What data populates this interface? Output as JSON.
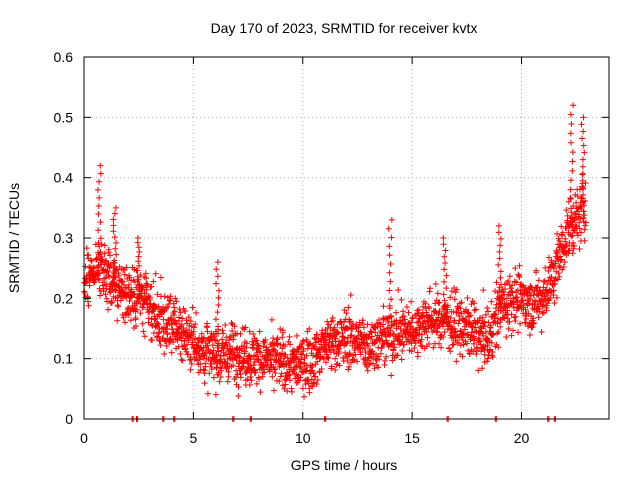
{
  "chart_data": {
    "type": "scatter",
    "title": "Day 170 of 2023, SRMTID for receiver kvtx",
    "xlabel": "GPS time / hours",
    "ylabel": "SRMTID / TECUs",
    "xlim": [
      0,
      24
    ],
    "ylim": [
      0,
      0.6
    ],
    "x_ticks": [
      0,
      5,
      10,
      15,
      20
    ],
    "x_tick_labels": [
      "0",
      "5",
      "10",
      "15",
      "20"
    ],
    "y_ticks": [
      0,
      0.1,
      0.2,
      0.3,
      0.4,
      0.5,
      0.6
    ],
    "y_tick_labels": [
      "0",
      "0.1",
      "0.2",
      "0.3",
      "0.4",
      "0.5",
      "0.6"
    ],
    "grid": true,
    "marker": "+",
    "color": "#ff0000",
    "trend": [
      [
        0.0,
        0.22
      ],
      [
        0.5,
        0.25
      ],
      [
        1.0,
        0.24
      ],
      [
        1.5,
        0.22
      ],
      [
        2.0,
        0.21
      ],
      [
        2.5,
        0.2
      ],
      [
        3.0,
        0.18
      ],
      [
        3.5,
        0.165
      ],
      [
        4.0,
        0.155
      ],
      [
        4.5,
        0.145
      ],
      [
        5.0,
        0.13
      ],
      [
        5.5,
        0.11
      ],
      [
        6.0,
        0.105
      ],
      [
        6.5,
        0.11
      ],
      [
        7.0,
        0.11
      ],
      [
        7.5,
        0.105
      ],
      [
        8.0,
        0.1
      ],
      [
        8.5,
        0.095
      ],
      [
        9.0,
        0.095
      ],
      [
        9.5,
        0.09
      ],
      [
        10.0,
        0.09
      ],
      [
        10.5,
        0.1
      ],
      [
        11.0,
        0.12
      ],
      [
        11.5,
        0.13
      ],
      [
        12.0,
        0.135
      ],
      [
        12.5,
        0.13
      ],
      [
        13.0,
        0.125
      ],
      [
        13.5,
        0.13
      ],
      [
        14.0,
        0.14
      ],
      [
        14.5,
        0.145
      ],
      [
        15.0,
        0.15
      ],
      [
        15.5,
        0.16
      ],
      [
        16.0,
        0.165
      ],
      [
        16.5,
        0.165
      ],
      [
        17.0,
        0.16
      ],
      [
        17.5,
        0.15
      ],
      [
        18.0,
        0.14
      ],
      [
        18.5,
        0.13
      ],
      [
        19.0,
        0.18
      ],
      [
        19.5,
        0.2
      ],
      [
        20.0,
        0.2
      ],
      [
        20.5,
        0.19
      ],
      [
        21.0,
        0.2
      ],
      [
        21.5,
        0.24
      ],
      [
        22.0,
        0.3
      ],
      [
        22.5,
        0.33
      ],
      [
        23.0,
        0.36
      ]
    ],
    "spikes": [
      {
        "x": 0.7,
        "y": 0.42
      },
      {
        "x": 1.4,
        "y": 0.35
      },
      {
        "x": 2.5,
        "y": 0.3
      },
      {
        "x": 6.1,
        "y": 0.26
      },
      {
        "x": 14.0,
        "y": 0.33
      },
      {
        "x": 16.5,
        "y": 0.3
      },
      {
        "x": 19.0,
        "y": 0.32
      },
      {
        "x": 22.3,
        "y": 0.52
      },
      {
        "x": 22.8,
        "y": 0.5
      }
    ],
    "zero_points_x": [
      2.2,
      2.4,
      3.6,
      4.1,
      6.8,
      7.6,
      11.0,
      16.6,
      18.8,
      21.2,
      21.5
    ],
    "n_points": 2200,
    "x_max": 22.95,
    "spread": 0.045
  }
}
